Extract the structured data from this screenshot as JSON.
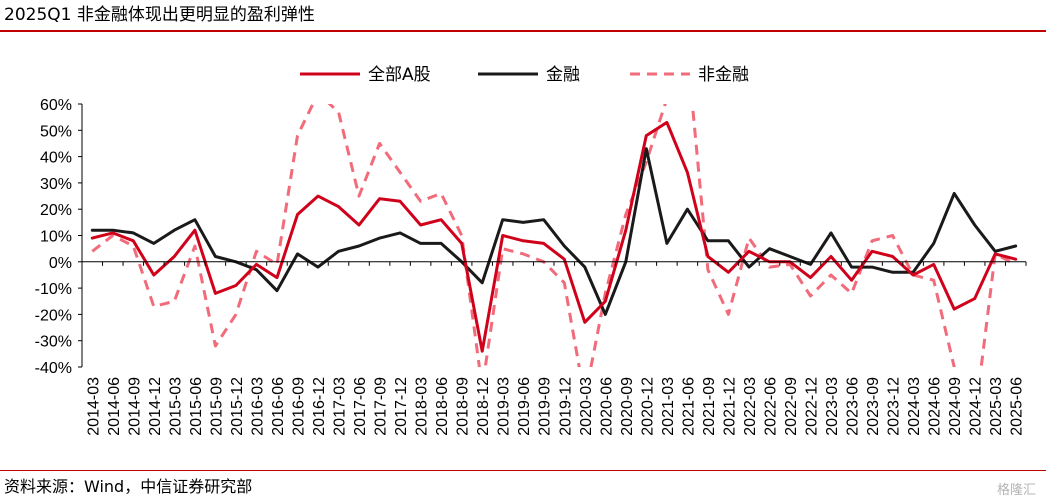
{
  "title": "2025Q1 非金融体现出更明显的盈利弹性",
  "source": "资料来源：Wind，中信证券研究部",
  "watermark": "格隆汇",
  "colors": {
    "a_share": "#d0021b",
    "financial": "#1a1a1a",
    "non_financial": "#f26b7a",
    "rule": "#c00000"
  },
  "chart_data": {
    "type": "line",
    "x": [
      "2014-03",
      "2014-06",
      "2014-09",
      "2014-12",
      "2015-03",
      "2015-06",
      "2015-09",
      "2015-12",
      "2016-03",
      "2016-06",
      "2016-09",
      "2016-12",
      "2017-03",
      "2017-06",
      "2017-09",
      "2017-12",
      "2018-03",
      "2018-06",
      "2018-09",
      "2018-12",
      "2019-03",
      "2019-06",
      "2019-09",
      "2019-12",
      "2020-03",
      "2020-06",
      "2020-09",
      "2020-12",
      "2021-03",
      "2021-06",
      "2021-09",
      "2021-12",
      "2022-03",
      "2022-06",
      "2022-09",
      "2022-12",
      "2023-03",
      "2023-06",
      "2023-09",
      "2023-12",
      "2024-03",
      "2024-06",
      "2024-09",
      "2024-12",
      "2025-03",
      "2025-06"
    ],
    "series": [
      {
        "name": "全部A股",
        "style": "solid",
        "color": "#d0021b",
        "values": [
          9,
          11,
          8,
          -5,
          2,
          12,
          -12,
          -9,
          -1,
          -6,
          18,
          25,
          21,
          14,
          24,
          23,
          14,
          16,
          7,
          -34,
          10,
          8,
          7,
          1,
          -23,
          -15,
          12,
          48,
          53,
          34,
          2,
          -4,
          4,
          0,
          0,
          -6,
          2,
          -7,
          4,
          2,
          -5,
          -1,
          -18,
          -14,
          3,
          1
        ]
      },
      {
        "name": "金融",
        "style": "solid",
        "color": "#1a1a1a",
        "values": [
          12,
          12,
          11,
          7,
          12,
          16,
          2,
          0,
          -3,
          -11,
          3,
          -2,
          4,
          6,
          9,
          11,
          7,
          7,
          0,
          -8,
          16,
          15,
          16,
          6,
          -2,
          -20,
          0,
          43,
          7,
          20,
          8,
          8,
          -2,
          5,
          2,
          -1,
          11,
          -2,
          -2,
          -4,
          -4,
          7,
          26,
          14,
          4,
          6
        ]
      },
      {
        "name": "非金融",
        "style": "dashed",
        "color": "#f26b7a",
        "values": [
          4,
          10,
          6,
          -17,
          -15,
          6,
          -32,
          -20,
          4,
          -1,
          48,
          64,
          57,
          25,
          45,
          34,
          23,
          26,
          10,
          -48,
          5,
          3,
          0,
          -8,
          -52,
          -12,
          18,
          38,
          62,
          80,
          -3,
          -20,
          9,
          -2,
          -1,
          -13,
          -5,
          -12,
          8,
          10,
          -5,
          -7,
          -40,
          -60,
          3,
          -1
        ]
      }
    ],
    "ylim": [
      -40,
      60
    ],
    "yticks": [
      "60%",
      "50%",
      "40%",
      "30%",
      "20%",
      "10%",
      "0%",
      "-10%",
      "-20%",
      "-30%",
      "-40%"
    ],
    "legend": "top"
  }
}
